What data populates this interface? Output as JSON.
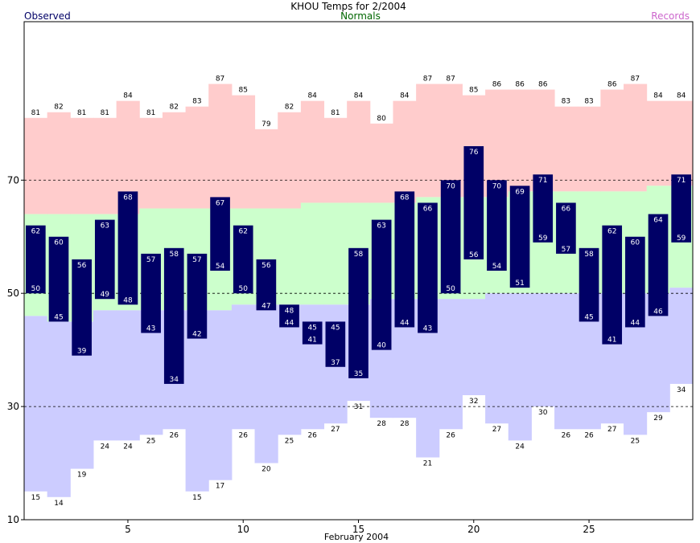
{
  "chart_data": {
    "type": "bar",
    "title": "KHOU Temps for 2/2004",
    "xlabel": "February 2004",
    "ylabel": "",
    "legend": {
      "observed": "Observed",
      "normals": "Normals",
      "records": "Records",
      "placement": "top"
    },
    "colors": {
      "observed": "#000066",
      "observed_text": "#ffffff",
      "normals": "#ccffcc",
      "normals_text": "#006600",
      "records_high": "#ffcccc",
      "records_low": "#ccccff",
      "records_text": "#cc66cc",
      "grid": "#000000"
    },
    "grid": true,
    "xlim": [
      1,
      29
    ],
    "ylim": [
      10,
      98
    ],
    "x_ticks": [
      5,
      10,
      15,
      20,
      25
    ],
    "y_ticks": [
      10,
      30,
      50,
      70
    ],
    "days": [
      1,
      2,
      3,
      4,
      5,
      6,
      7,
      8,
      9,
      10,
      11,
      12,
      13,
      14,
      15,
      16,
      17,
      18,
      19,
      20,
      21,
      22,
      23,
      24,
      25,
      26,
      27,
      28,
      29
    ],
    "record_high": [
      81,
      82,
      81,
      81,
      84,
      81,
      82,
      83,
      87,
      85,
      79,
      82,
      84,
      81,
      84,
      80,
      84,
      87,
      87,
      85,
      86,
      86,
      86,
      83,
      83,
      86,
      87,
      84,
      84
    ],
    "record_low": [
      15,
      14,
      19,
      24,
      24,
      25,
      26,
      15,
      17,
      26,
      20,
      25,
      26,
      27,
      31,
      28,
      28,
      21,
      26,
      32,
      27,
      24,
      30,
      26,
      26,
      27,
      25,
      29,
      34
    ],
    "normal_high": [
      64,
      64,
      64,
      64,
      64,
      65,
      65,
      65,
      65,
      65,
      65,
      65,
      66,
      66,
      66,
      66,
      66,
      67,
      67,
      67,
      67,
      68,
      68,
      68,
      68,
      68,
      68,
      69,
      69
    ],
    "normal_low": [
      46,
      45,
      45,
      47,
      47,
      47,
      47,
      47,
      47,
      48,
      48,
      48,
      48,
      48,
      48,
      49,
      49,
      49,
      49,
      49,
      50,
      50,
      50,
      50,
      50,
      50,
      50,
      50,
      51
    ],
    "observed_high": [
      62,
      60,
      56,
      63,
      68,
      57,
      58,
      57,
      67,
      62,
      56,
      48,
      45,
      45,
      58,
      63,
      68,
      66,
      70,
      76,
      70,
      69,
      71,
      66,
      58,
      62,
      60,
      64,
      71
    ],
    "observed_low": [
      50,
      45,
      39,
      49,
      48,
      43,
      34,
      42,
      54,
      50,
      47,
      44,
      41,
      37,
      35,
      40,
      44,
      43,
      50,
      56,
      54,
      51,
      59,
      57,
      45,
      41,
      44,
      46,
      59
    ]
  }
}
